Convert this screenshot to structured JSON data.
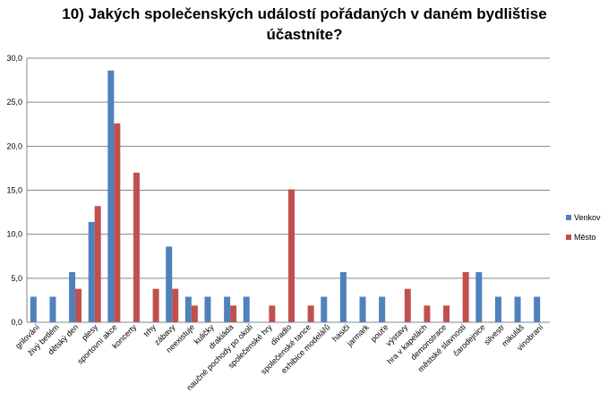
{
  "chart_data": {
    "type": "bar",
    "title_lines": [
      "10) Jakých společenských událostí pořádaných v daném bydlištise",
      "účastníte?"
    ],
    "xlabel": "",
    "ylabel": "",
    "ylim": [
      0,
      30
    ],
    "yticks": [
      "0,0",
      "5,0",
      "10,0",
      "15,0",
      "20,0",
      "25,0",
      "30,0"
    ],
    "grid": true,
    "legend_position": "right",
    "categories": [
      "grilování",
      "živý betlém",
      "dětský den",
      "plesy",
      "sportovní akce",
      "koncerty",
      "trhy",
      "zábavy",
      "neexistuje",
      "kuličky",
      "drakiáda",
      "naučné pochody po okolí",
      "společenské hry",
      "divadlo",
      "společenské tance",
      "exhibice modelářů",
      "hasiči",
      "jarmark",
      "pouťe",
      "výstavy",
      "hra v kapelách",
      "demonstrace",
      "městské slavnosti",
      "čarodejnice",
      "silvestr",
      "mikuláš",
      "vinobraní"
    ],
    "series": [
      {
        "name": "Venkov",
        "color": "#4F81BD",
        "values": [
          2.9,
          2.9,
          5.7,
          11.4,
          28.6,
          0,
          0,
          8.6,
          2.9,
          2.9,
          2.9,
          2.9,
          0,
          0,
          0,
          2.9,
          5.7,
          2.9,
          2.9,
          0,
          0,
          0,
          0,
          5.7,
          2.9,
          2.9,
          2.9
        ]
      },
      {
        "name": "Město",
        "color": "#C0504D",
        "values": [
          0,
          0,
          3.8,
          13.2,
          22.6,
          17.0,
          3.8,
          3.8,
          1.9,
          0,
          1.9,
          0,
          1.9,
          15.1,
          1.9,
          0,
          0,
          0,
          0,
          3.8,
          1.9,
          1.9,
          5.7,
          0,
          0,
          0,
          0
        ]
      }
    ]
  }
}
